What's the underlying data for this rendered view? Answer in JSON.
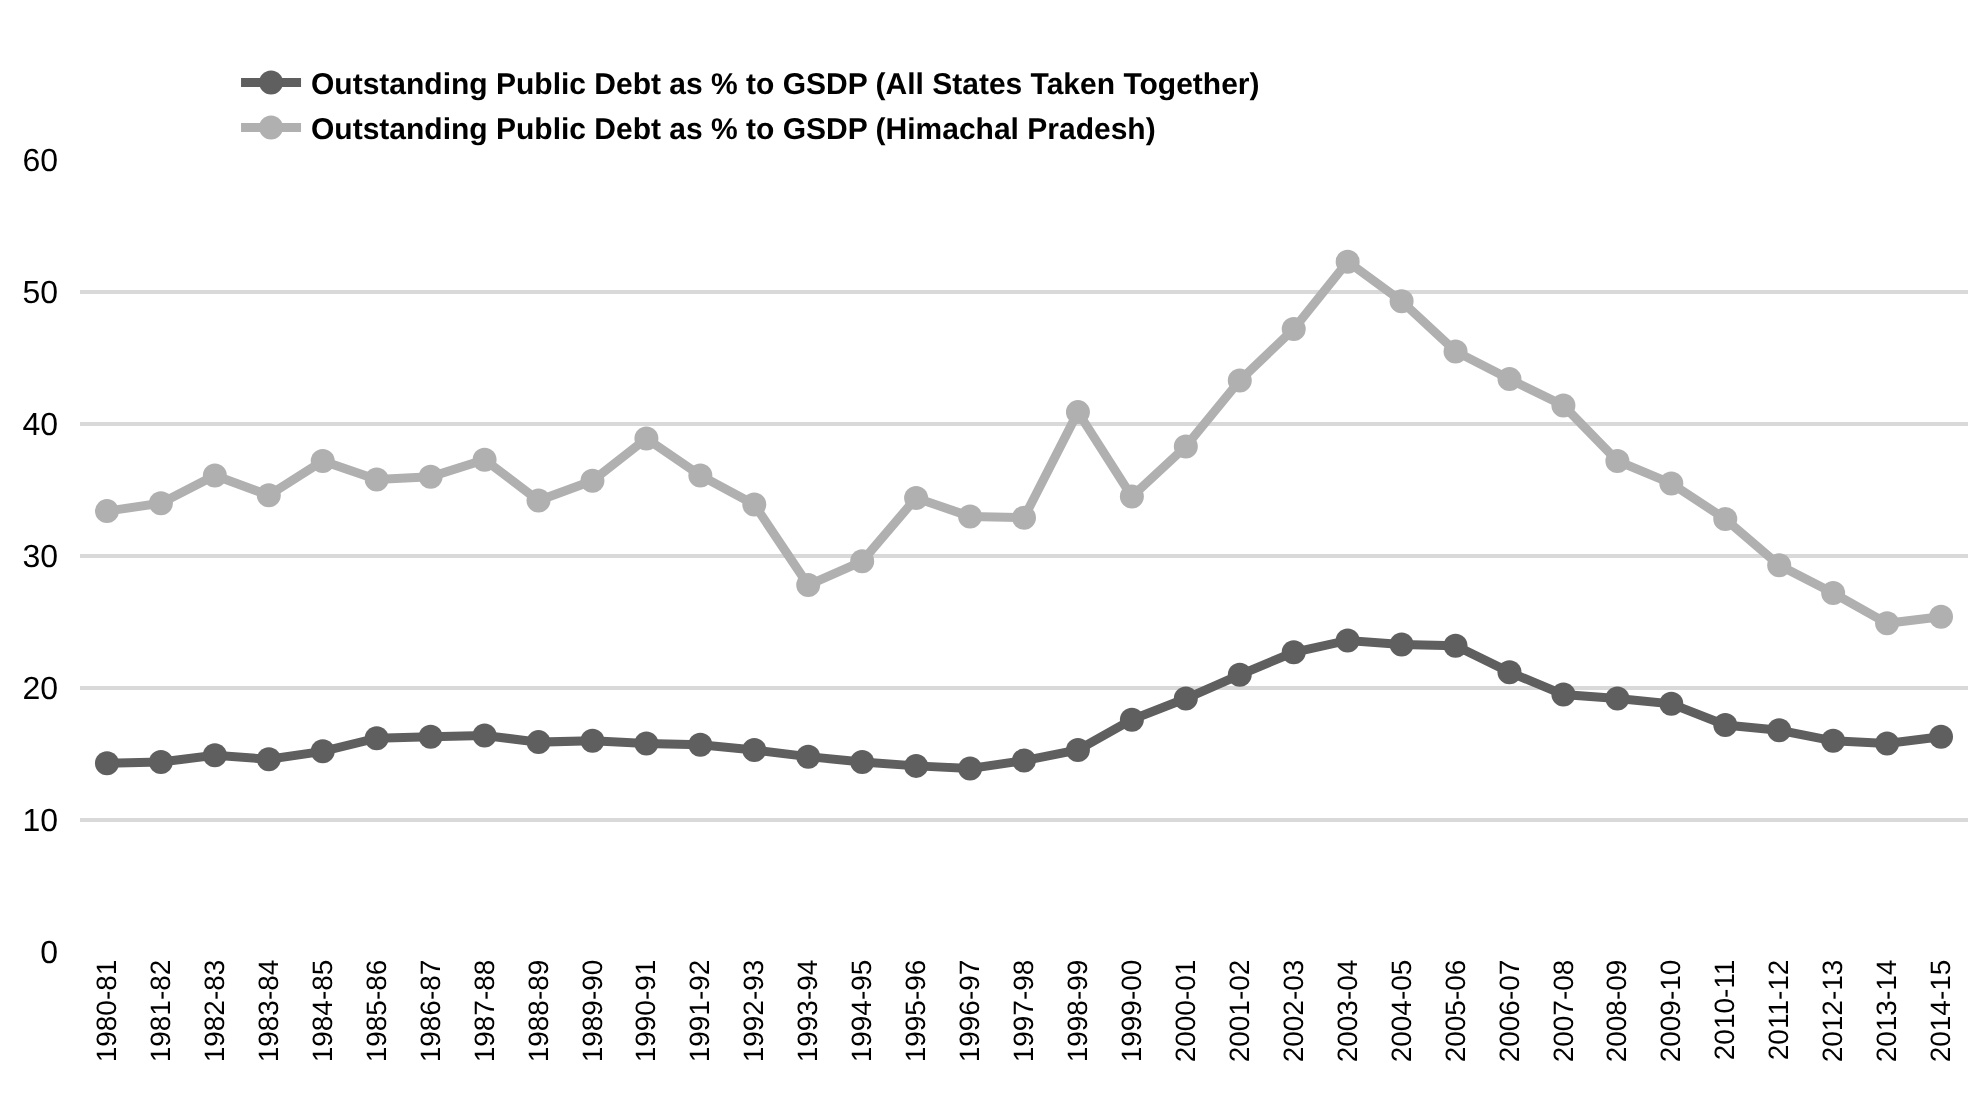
{
  "chart_data": {
    "type": "line",
    "categories": [
      "1980-81",
      "1981-82",
      "1982-83",
      "1983-84",
      "1984-85",
      "1985-86",
      "1986-87",
      "1987-88",
      "1988-89",
      "1989-90",
      "1990-91",
      "1991-92",
      "1992-93",
      "1993-94",
      "1994-95",
      "1995-96",
      "1996-97",
      "1997-98",
      "1998-99",
      "1999-00",
      "2000-01",
      "2001-02",
      "2002-03",
      "2003-04",
      "2004-05",
      "2005-06",
      "2006-07",
      "2007-08",
      "2008-09",
      "2009-10",
      "2010-11",
      "2011-12",
      "2012-13",
      "2013-14",
      "2014-15"
    ],
    "series": [
      {
        "name": "Outstanding Public Debt as % to GSDP (All States Taken Together)",
        "color": "#5f5f5f",
        "values": [
          14.3,
          14.4,
          14.9,
          14.6,
          15.2,
          16.2,
          16.3,
          16.4,
          15.9,
          16.0,
          15.8,
          15.7,
          15.3,
          14.8,
          14.4,
          14.1,
          13.9,
          14.5,
          15.3,
          17.6,
          19.2,
          21.0,
          22.7,
          23.6,
          23.3,
          23.2,
          21.2,
          19.5,
          19.2,
          18.8,
          17.2,
          16.8,
          16.0,
          15.8,
          16.3
        ]
      },
      {
        "name": "Outstanding Public Debt as % to GSDP (Himachal Pradesh)",
        "color": "#b0b0b0",
        "values": [
          33.4,
          34.0,
          36.1,
          34.6,
          37.2,
          35.8,
          36.0,
          37.3,
          34.2,
          35.7,
          38.9,
          36.1,
          33.9,
          27.8,
          29.6,
          34.4,
          33.0,
          32.9,
          40.9,
          34.5,
          38.3,
          43.3,
          47.2,
          52.3,
          49.3,
          45.5,
          43.4,
          41.4,
          37.2,
          35.5,
          32.8,
          29.3,
          27.2,
          24.9,
          25.4
        ]
      }
    ],
    "ylim": [
      0,
      60
    ],
    "yticks": [
      0,
      10,
      20,
      30,
      40,
      50,
      60
    ],
    "grid": "y",
    "legend": "top left",
    "marker": "circle",
    "line_style": "solid"
  }
}
